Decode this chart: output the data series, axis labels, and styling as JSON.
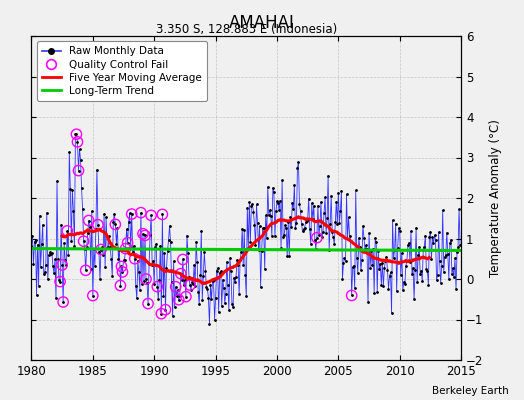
{
  "title": "AMAHAI",
  "subtitle": "3.350 S, 128.883 E (Indonesia)",
  "ylabel": "Temperature Anomaly (°C)",
  "attribution": "Berkeley Earth",
  "xlim": [
    1980,
    2015
  ],
  "ylim": [
    -2,
    6
  ],
  "yticks": [
    -2,
    -1,
    0,
    1,
    2,
    3,
    4,
    5,
    6
  ],
  "xticks": [
    1980,
    1985,
    1990,
    1995,
    2000,
    2005,
    2010,
    2015
  ],
  "raw_color": "#3333ff",
  "qc_color": "#ff00ff",
  "moving_avg_color": "#ff0000",
  "trend_color": "#00cc00",
  "background_color": "#f0f0f0",
  "seed": 77
}
